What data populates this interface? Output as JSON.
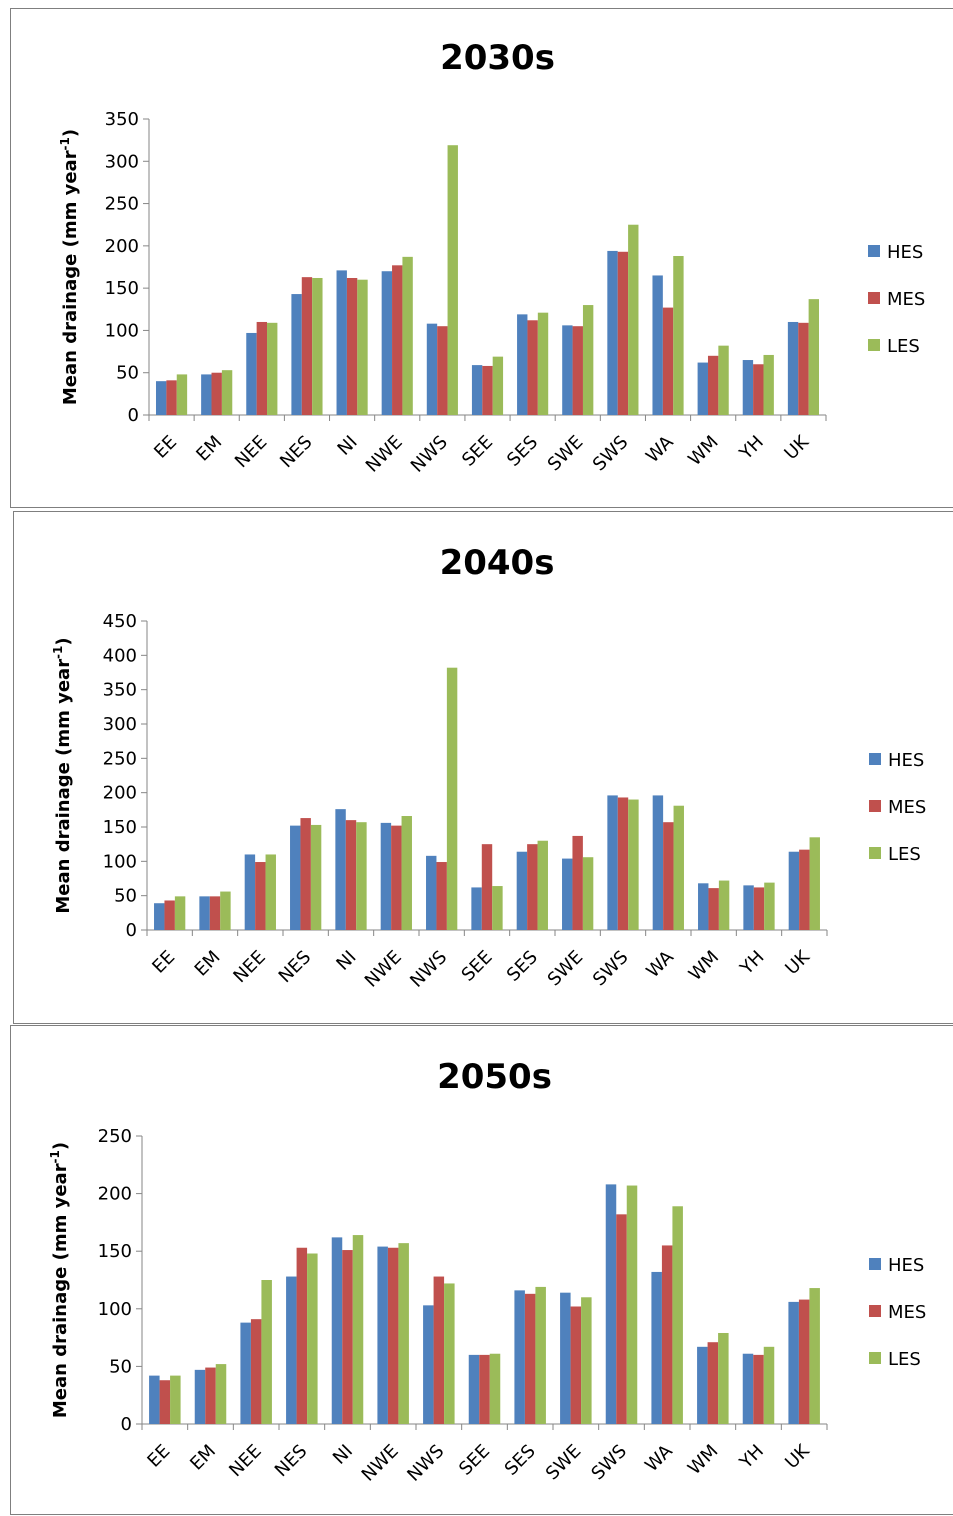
{
  "chart_data": [
    {
      "type": "bar",
      "title": "2030s",
      "ylabel": "Mean drainage (mm  year",
      "ylabel_sup": "-1",
      "ylabel_close": ")",
      "ylim": [
        0,
        350
      ],
      "yticks": [
        0,
        50,
        100,
        150,
        200,
        250,
        300,
        350
      ],
      "categories": [
        "EE",
        "EM",
        "NEE",
        "NES",
        "NI",
        "NWE",
        "NWS",
        "SEE",
        "SES",
        "SWE",
        "SWS",
        "WA",
        "WM",
        "YH",
        "UK"
      ],
      "series": [
        {
          "name": "HES",
          "color": "#4F81BD",
          "values": [
            40,
            48,
            97,
            143,
            171,
            170,
            108,
            59,
            119,
            106,
            194,
            165,
            62,
            65,
            110
          ]
        },
        {
          "name": "MES",
          "color": "#C0504D",
          "values": [
            41,
            50,
            110,
            163,
            162,
            177,
            105,
            58,
            112,
            105,
            193,
            127,
            70,
            60,
            109
          ]
        },
        {
          "name": "LES",
          "color": "#9BBB59",
          "values": [
            48,
            53,
            109,
            162,
            160,
            187,
            319,
            69,
            121,
            130,
            225,
            188,
            82,
            71,
            137
          ]
        }
      ],
      "legend_position": "right",
      "grid": false
    },
    {
      "type": "bar",
      "title": "2040s",
      "ylabel": "Mean drainage (mm year",
      "ylabel_sup": "-1",
      "ylabel_close": ")",
      "ylim": [
        0,
        450
      ],
      "yticks": [
        0,
        50,
        100,
        150,
        200,
        250,
        300,
        350,
        400,
        450
      ],
      "categories": [
        "EE",
        "EM",
        "NEE",
        "NES",
        "NI",
        "NWE",
        "NWS",
        "SEE",
        "SES",
        "SWE",
        "SWS",
        "WA",
        "WM",
        "YH",
        "UK"
      ],
      "series": [
        {
          "name": "HES",
          "color": "#4F81BD",
          "values": [
            39,
            49,
            110,
            152,
            176,
            156,
            108,
            62,
            114,
            104,
            196,
            196,
            68,
            65,
            114
          ]
        },
        {
          "name": "MES",
          "color": "#C0504D",
          "values": [
            43,
            49,
            99,
            163,
            160,
            152,
            99,
            125,
            125,
            137,
            193,
            157,
            61,
            62,
            117
          ]
        },
        {
          "name": "LES",
          "color": "#9BBB59",
          "values": [
            49,
            56,
            110,
            153,
            157,
            166,
            382,
            64,
            130,
            106,
            190,
            181,
            72,
            69,
            135
          ]
        }
      ],
      "legend_position": "right",
      "grid": false
    },
    {
      "type": "bar",
      "title": "2050s",
      "ylabel": "Mean drainage (mm year",
      "ylabel_sup": "-1",
      "ylabel_close": ")",
      "ylim": [
        0,
        250
      ],
      "yticks": [
        0,
        50,
        100,
        150,
        200,
        250
      ],
      "categories": [
        "EE",
        "EM",
        "NEE",
        "NES",
        "NI",
        "NWE",
        "NWS",
        "SEE",
        "SES",
        "SWE",
        "SWS",
        "WA",
        "WM",
        "YH",
        "UK"
      ],
      "series": [
        {
          "name": "HES",
          "color": "#4F81BD",
          "values": [
            42,
            47,
            88,
            128,
            162,
            154,
            103,
            60,
            116,
            114,
            208,
            132,
            67,
            61,
            106
          ]
        },
        {
          "name": "MES",
          "color": "#C0504D",
          "values": [
            38,
            49,
            91,
            153,
            151,
            153,
            128,
            60,
            113,
            102,
            182,
            155,
            71,
            60,
            108
          ]
        },
        {
          "name": "LES",
          "color": "#9BBB59",
          "values": [
            42,
            52,
            125,
            148,
            164,
            157,
            122,
            61,
            119,
            110,
            207,
            189,
            79,
            67,
            118
          ]
        }
      ],
      "legend_position": "right",
      "grid": false
    }
  ]
}
